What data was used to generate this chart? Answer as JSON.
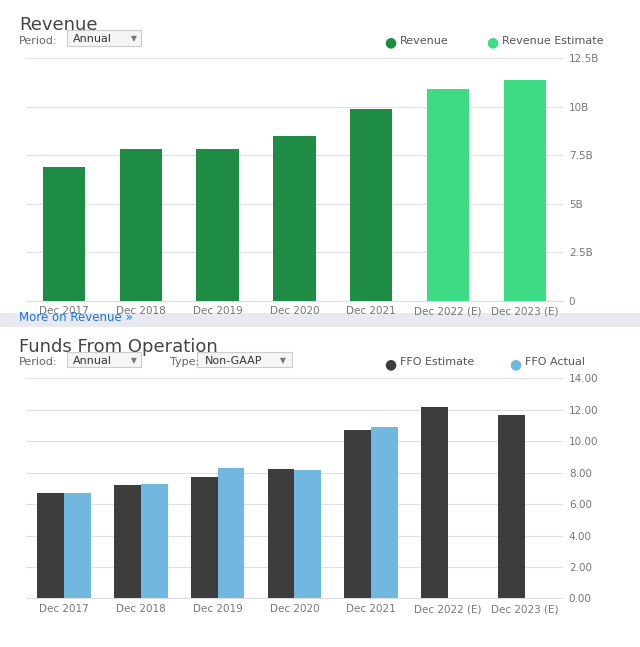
{
  "revenue": {
    "title": "Revenue",
    "categories": [
      "Dec 2017",
      "Dec 2018",
      "Dec 2019",
      "Dec 2020",
      "Dec 2021",
      "Dec 2022 (E)",
      "Dec 2023 (E)"
    ],
    "values": [
      6900000000.0,
      7800000000.0,
      7800000000.0,
      8500000000.0,
      9900000000.0,
      10900000000.0,
      11400000000.0
    ],
    "colors": [
      "#1e8c45",
      "#1e8c45",
      "#1e8c45",
      "#1e8c45",
      "#1e8c45",
      "#3ddc84",
      "#3ddc84"
    ],
    "ylim": [
      0,
      12500000000.0
    ],
    "yticks": [
      0,
      2500000000.0,
      5000000000.0,
      7500000000.0,
      10000000000.0,
      12500000000.0
    ],
    "ytick_labels": [
      "0",
      "2.5B",
      "5B",
      "7.5B",
      "10B",
      "12.5B"
    ],
    "legend_revenue_color": "#1e8c45",
    "legend_estimate_color": "#3ddc84",
    "legend_revenue_label": "Revenue",
    "legend_estimate_label": "Revenue Estimate",
    "period_label": "Period:",
    "period_value": "Annual",
    "more_link": "More on Revenue »",
    "bg_color": "#ffffff"
  },
  "ffo": {
    "title": "Funds From Operation",
    "categories": [
      "Dec 2017",
      "Dec 2018",
      "Dec 2019",
      "Dec 2020",
      "Dec 2021",
      "Dec 2022 (E)",
      "Dec 2023 (E)"
    ],
    "estimate_values": [
      6.7,
      7.25,
      7.75,
      8.25,
      10.7,
      12.2,
      11.7
    ],
    "actual_values": [
      6.7,
      7.3,
      8.3,
      8.2,
      10.9,
      null,
      null
    ],
    "estimate_color": "#3d3d3d",
    "actual_color": "#70b8e0",
    "ylim": [
      0,
      14
    ],
    "yticks": [
      0,
      2,
      4,
      6,
      8,
      10,
      12,
      14
    ],
    "ytick_labels": [
      "0.00",
      "2.00",
      "4.00",
      "6.00",
      "8.00",
      "10.00",
      "12.00",
      "14.00"
    ],
    "legend_estimate_label": "FFO Estimate",
    "legend_actual_label": "FFO Actual",
    "period_label": "Period:",
    "period_value": "Annual",
    "type_label": "Type:",
    "type_value": "Non-GAAP",
    "bg_color": "#ffffff"
  },
  "divider_color": "#e8eaf0",
  "section2_bg": "#f5f7fa",
  "global_bg": "#ffffff"
}
